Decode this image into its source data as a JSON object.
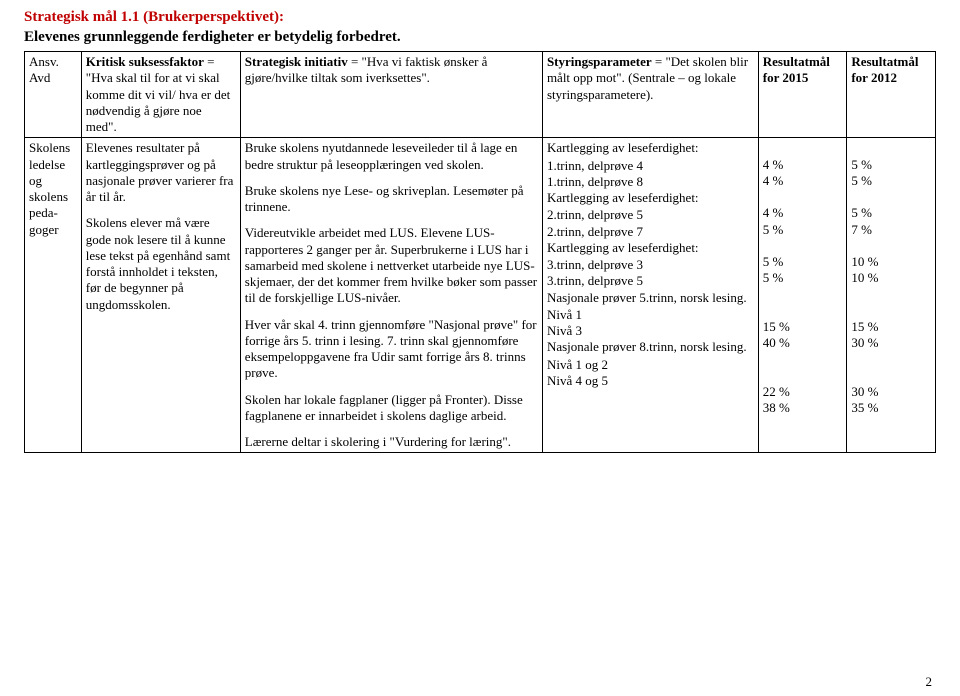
{
  "title": {
    "main": "Strategisk mål 1.1 (Brukerperspektivet):",
    "sub": "Elevenes grunnleggende ferdigheter er betydelig forbedret."
  },
  "headers": {
    "ansv": "Ansv. Avd",
    "kritisk_bold": "Kritisk suksessfaktor",
    "kritisk_def": "= \"Hva skal til for at vi skal komme dit vi vil/ hva er det nødvendig å gjøre noe med\".",
    "init_bold": "Strategisk initiativ",
    "init_def": "= \"Hva vi faktisk ønsker å gjøre/hvilke tiltak som iverksettes\".",
    "styr_bold": "Styringsparameter",
    "styr_def": "= \"Det skolen blir målt opp mot\". (Sentrale – og lokale styringsparametere).",
    "r15": "Resultatmål for 2015",
    "r12": "Resultatmål for 2012"
  },
  "row": {
    "ansv": "Skolens ledelse og skolens peda-goger",
    "kritisk_p1": "Elevenes resultater på kartleggingsprøver og på nasjonale prøver varierer fra år til år.",
    "kritisk_p2": "Skolens elever må være gode nok lesere til å kunne lese tekst på egenhånd samt forstå innholdet i teksten, før de begynner på ungdomsskolen.",
    "init_p1": "Bruke skolens nyutdannede leseveileder til å lage en bedre struktur på leseopplæringen ved skolen.",
    "init_p2": "Bruke skolens nye Lese- og skriveplan. Lesemøter på trinnene.",
    "init_p3": "Videreutvikle arbeidet med LUS. Elevene LUS-rapporteres 2 ganger per år. Superbrukerne i LUS har i samarbeid med skolene i nettverket utarbeide nye LUS-skjemaer, der det kommer frem hvilke bøker som passer til de forskjellige LUS-nivåer.",
    "init_p4": "Hver vår skal 4. trinn gjennomføre \"Nasjonal prøve\" for forrige års 5. trinn i lesing. 7. trinn skal gjennomføre eksempeloppgavene fra Udir samt forrige års 8. trinns prøve.",
    "init_p5": "Skolen har lokale fagplaner (ligger på Fronter). Disse fagplanene er innarbeidet i skolens daglige arbeid.",
    "init_p6": "Lærerne deltar i skolering i \"Vurdering for læring\".",
    "params": [
      {
        "header": "Kartlegging av leseferdighet:",
        "items": [
          {
            "label": "1.trinn, delprøve 4",
            "r15": "4 %",
            "r12": "5 %"
          },
          {
            "label": "1.trinn, delprøve 8",
            "r15": "4 %",
            "r12": "5 %"
          }
        ]
      },
      {
        "header": "Kartlegging av leseferdighet:",
        "items": [
          {
            "label": "2.trinn, delprøve 5",
            "r15": "4 %",
            "r12": " 5 %"
          },
          {
            "label": "2.trinn, delprøve 7",
            "r15": "5 %",
            "r12": " 7 %"
          }
        ]
      },
      {
        "header": "Kartlegging av leseferdighet:",
        "items": [
          {
            "label": "3.trinn, delprøve 3",
            "r15": "5 %",
            "r12": "10 %"
          },
          {
            "label": "3.trinn, delprøve 5",
            "r15": "5 %",
            "r12": "10 %"
          }
        ]
      },
      {
        "header": "Nasjonale prøver 5.trinn, norsk lesing.",
        "items": [
          {
            "label": "Nivå 1",
            "r15": "15 %",
            "r12": "15 %"
          },
          {
            "label": "Nivå 3",
            "r15": "40 %",
            "r12": "30 %"
          }
        ]
      },
      {
        "header": "Nasjonale prøver 8.trinn, norsk lesing.",
        "items": [
          {
            "label": "Nivå 1 og 2",
            "r15": "22 %",
            "r12": "30 %"
          },
          {
            "label": "Nivå 4 og 5",
            "r15": "38 %",
            "r12": "35 %"
          }
        ]
      }
    ]
  },
  "pageNumber": "2"
}
